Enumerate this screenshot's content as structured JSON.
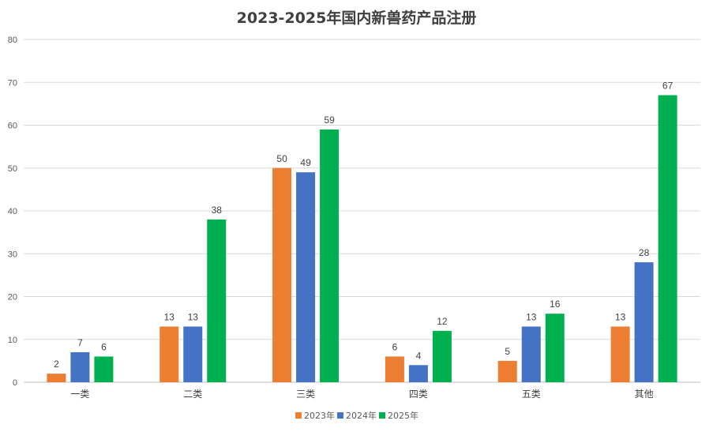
{
  "chart_data": {
    "type": "bar",
    "title": "2023-2025年国内新兽药产品注册",
    "categories": [
      "一类",
      "二类",
      "三类",
      "四类",
      "五类",
      "其他"
    ],
    "series": [
      {
        "name": "2023年",
        "color": "#ED7D31",
        "values": [
          2,
          13,
          50,
          6,
          5,
          13
        ]
      },
      {
        "name": "2024年",
        "color": "#4472C4",
        "values": [
          7,
          13,
          49,
          4,
          13,
          28
        ]
      },
      {
        "name": "2025年",
        "color": "#00B050",
        "values": [
          6,
          38,
          59,
          12,
          16,
          67
        ]
      }
    ],
    "ylim": [
      0,
      80
    ],
    "yticks": [
      0,
      10,
      20,
      30,
      40,
      50,
      60,
      70,
      80
    ],
    "xlabel": "",
    "ylabel": "",
    "grid": true,
    "legend_position": "bottom"
  }
}
